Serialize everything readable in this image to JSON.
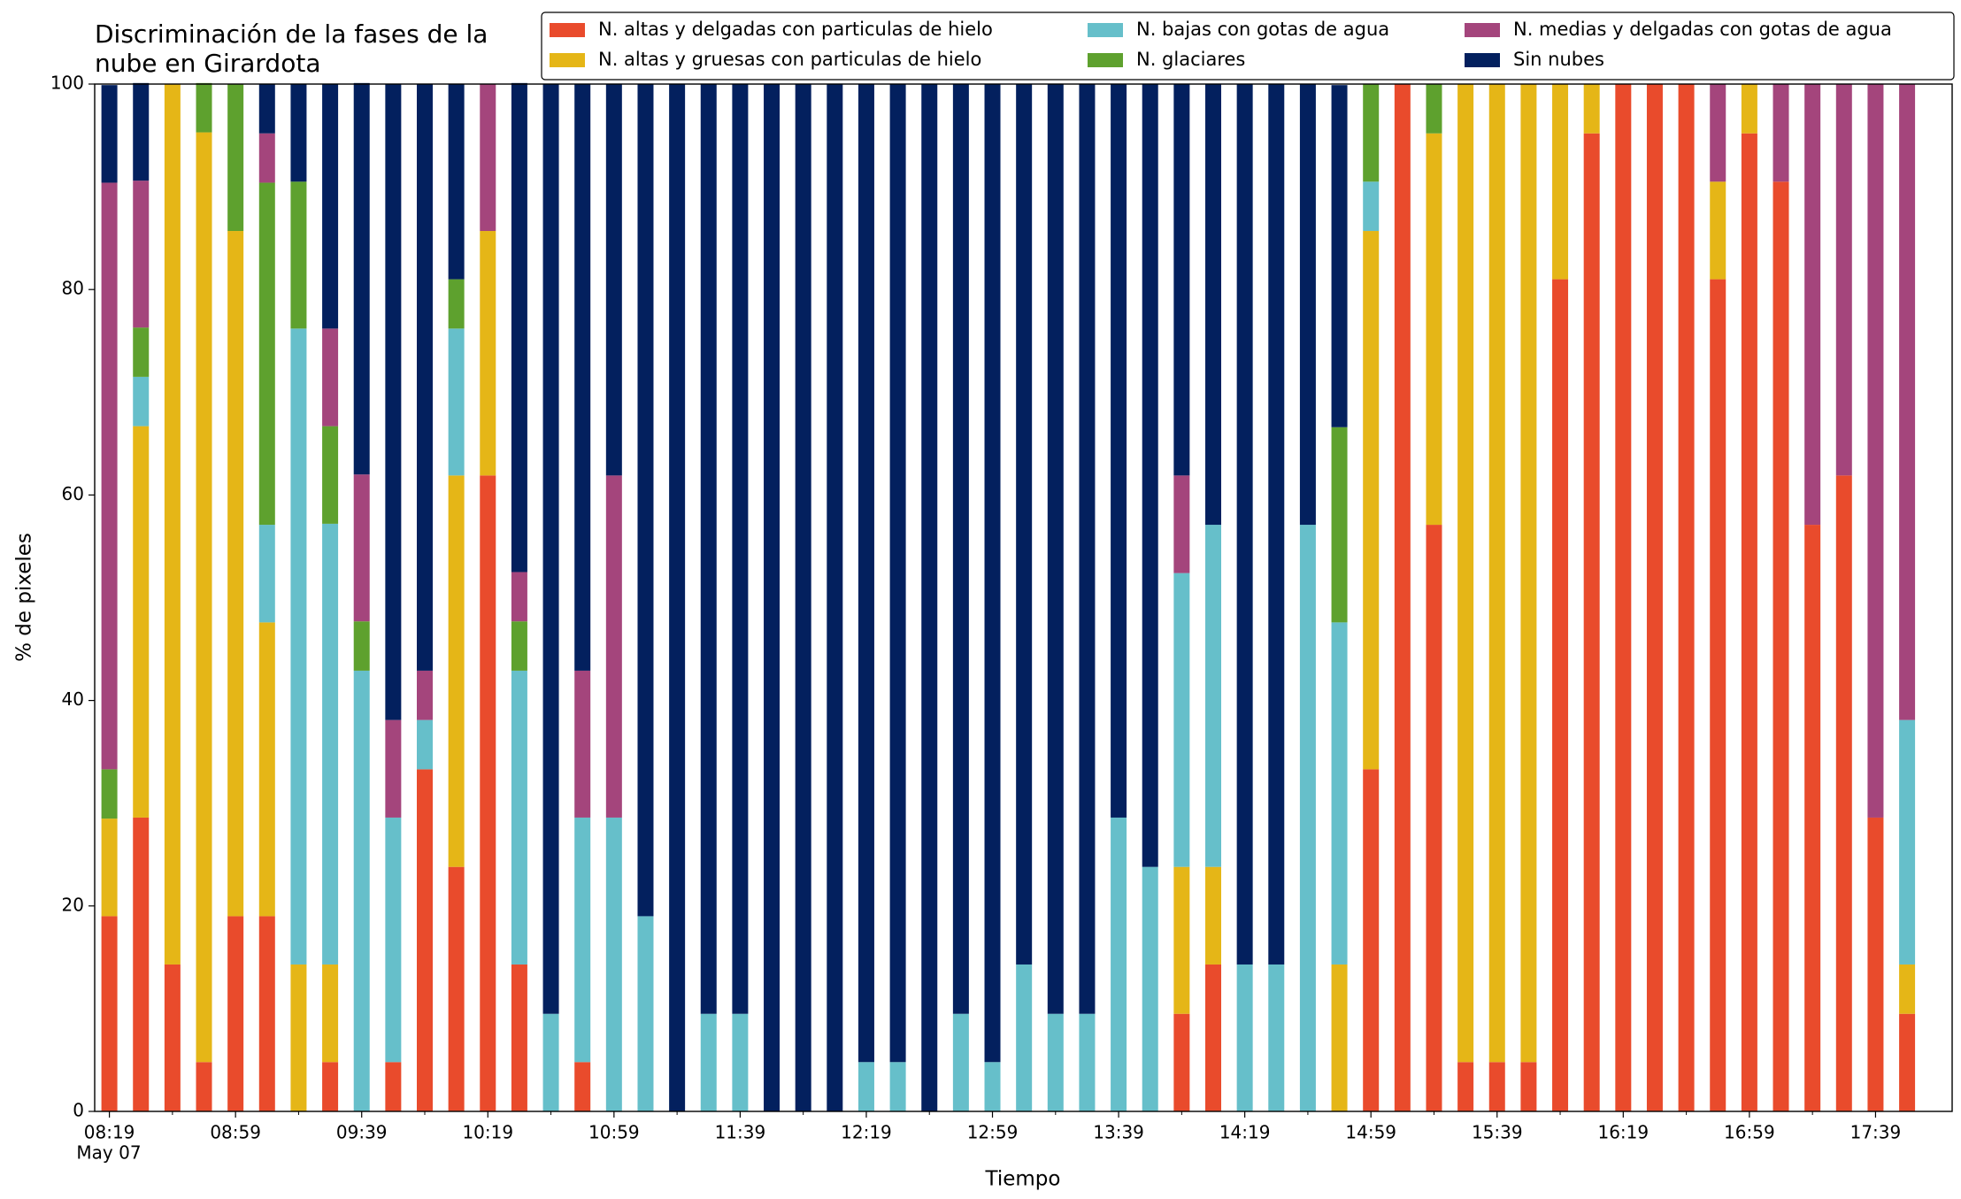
{
  "chart_data": {
    "type": "stacked_bar",
    "title": [
      "Discriminación de la fases de la",
      "nube en Girardota"
    ],
    "xlabel": "Tiempo",
    "ylabel": "% de pixeles",
    "date_label": "May 07",
    "categories": [
      "08:19",
      null,
      null,
      null,
      "08:59",
      null,
      null,
      null,
      "09:39",
      null,
      null,
      null,
      "10:19",
      null,
      null,
      null,
      "10:59",
      null,
      null,
      null,
      "11:39",
      null,
      null,
      null,
      "12:19",
      null,
      null,
      null,
      "12:59",
      null,
      null,
      null,
      "13:39",
      null,
      null,
      null,
      "14:19",
      null,
      null,
      null,
      "14:59",
      null,
      null,
      null,
      "15:39",
      null,
      null,
      null,
      "16:19",
      null,
      null,
      null,
      "16:59",
      null,
      null,
      null,
      "17:39",
      null
    ],
    "ylim": [
      0,
      100
    ],
    "yticks": [
      0,
      20,
      40,
      60,
      80,
      100
    ],
    "grid": false,
    "legend": "top",
    "series": [
      {
        "name": "N. altas y delgadas con particulas de hielo",
        "color": "#e94b2c",
        "values": [
          19.0,
          28.6,
          14.3,
          4.8,
          19.0,
          19.0,
          0,
          4.8,
          0,
          4.8,
          33.3,
          23.8,
          61.9,
          14.3,
          0,
          4.8,
          0,
          0,
          0,
          0,
          0,
          0,
          0,
          0,
          0,
          0,
          0,
          0,
          0,
          0,
          0,
          0,
          0,
          0,
          9.5,
          14.3,
          0,
          0,
          0,
          0,
          33.3,
          100,
          57.1,
          4.8,
          4.8,
          4.8,
          81.0,
          95.2,
          100,
          100,
          100,
          81.0,
          95.2,
          90.5,
          57.1,
          61.9,
          28.6,
          9.5
        ]
      },
      {
        "name": "N. altas y gruesas con particulas de hielo",
        "color": "#e5b617",
        "values": [
          9.5,
          38.1,
          85.7,
          90.5,
          66.7,
          28.6,
          14.3,
          9.5,
          0,
          0,
          0,
          38.1,
          23.8,
          0,
          0,
          0,
          0,
          0,
          0,
          0,
          0,
          0,
          0,
          0,
          0,
          0,
          0,
          0,
          0,
          0,
          0,
          0,
          0,
          0,
          14.3,
          9.5,
          0,
          0,
          0,
          14.3,
          52.4,
          0,
          38.1,
          95.2,
          95.2,
          95.2,
          19.0,
          4.8,
          0,
          0,
          0,
          9.5,
          4.8,
          0,
          0,
          0,
          0,
          4.8
        ]
      },
      {
        "name": "N. bajas con gotas de agua",
        "color": "#66bfca",
        "values": [
          0,
          4.8,
          0,
          0,
          0,
          9.5,
          61.9,
          42.9,
          42.9,
          23.8,
          4.8,
          14.3,
          0,
          28.6,
          9.5,
          23.8,
          28.6,
          19.0,
          0,
          9.5,
          9.5,
          0,
          0,
          0,
          4.8,
          4.8,
          0,
          9.5,
          4.8,
          14.3,
          9.5,
          9.5,
          28.6,
          23.8,
          28.6,
          33.3,
          14.3,
          14.3,
          57.1,
          33.3,
          4.8,
          0,
          0,
          0,
          0,
          0,
          0,
          0,
          0,
          0,
          0,
          0,
          0,
          0,
          0,
          0,
          0,
          23.8
        ]
      },
      {
        "name": "N. glaciares",
        "color": "#5ea12e",
        "values": [
          4.8,
          4.8,
          0,
          4.8,
          14.3,
          33.3,
          14.3,
          9.5,
          4.8,
          0,
          0,
          4.8,
          0,
          4.8,
          0,
          0,
          0,
          0,
          0,
          0,
          0,
          0,
          0,
          0,
          0,
          0,
          0,
          0,
          0,
          0,
          0,
          0,
          0,
          0,
          0,
          0,
          0,
          0,
          0,
          19.0,
          9.5,
          0,
          4.8,
          0,
          0,
          0,
          0,
          0,
          0,
          0,
          0,
          0,
          0,
          0,
          0,
          0,
          0,
          0
        ]
      },
      {
        "name": "N. medias y delgadas con gotas de agua",
        "color": "#a4457c",
        "values": [
          57.1,
          14.3,
          0,
          0,
          0,
          4.8,
          0,
          9.5,
          14.3,
          9.5,
          4.8,
          0,
          14.3,
          4.8,
          0,
          14.3,
          33.3,
          0,
          0,
          0,
          0,
          0,
          0,
          0,
          0,
          0,
          0,
          0,
          0,
          0,
          0,
          0,
          0,
          0,
          9.5,
          0,
          0,
          0,
          0,
          0,
          0,
          0,
          0,
          0,
          0,
          0,
          0,
          0,
          0,
          0,
          0,
          9.5,
          0,
          9.5,
          42.9,
          38.1,
          71.4,
          61.9
        ]
      },
      {
        "name": "Sin nubes",
        "color": "#03205e",
        "values": [
          9.5,
          9.5,
          0,
          0,
          0,
          4.8,
          9.5,
          23.8,
          38.1,
          61.9,
          57.1,
          19.0,
          0,
          47.6,
          90.5,
          57.1,
          38.1,
          81.0,
          100,
          90.5,
          90.5,
          100,
          100,
          100,
          95.2,
          95.2,
          100,
          90.5,
          95.2,
          85.7,
          90.5,
          90.5,
          71.4,
          76.2,
          38.1,
          42.9,
          85.7,
          85.7,
          42.9,
          33.3,
          0,
          0,
          0,
          0,
          0,
          0,
          0,
          0,
          0,
          0,
          0,
          0,
          0,
          0,
          0,
          0,
          0,
          0
        ]
      }
    ]
  }
}
